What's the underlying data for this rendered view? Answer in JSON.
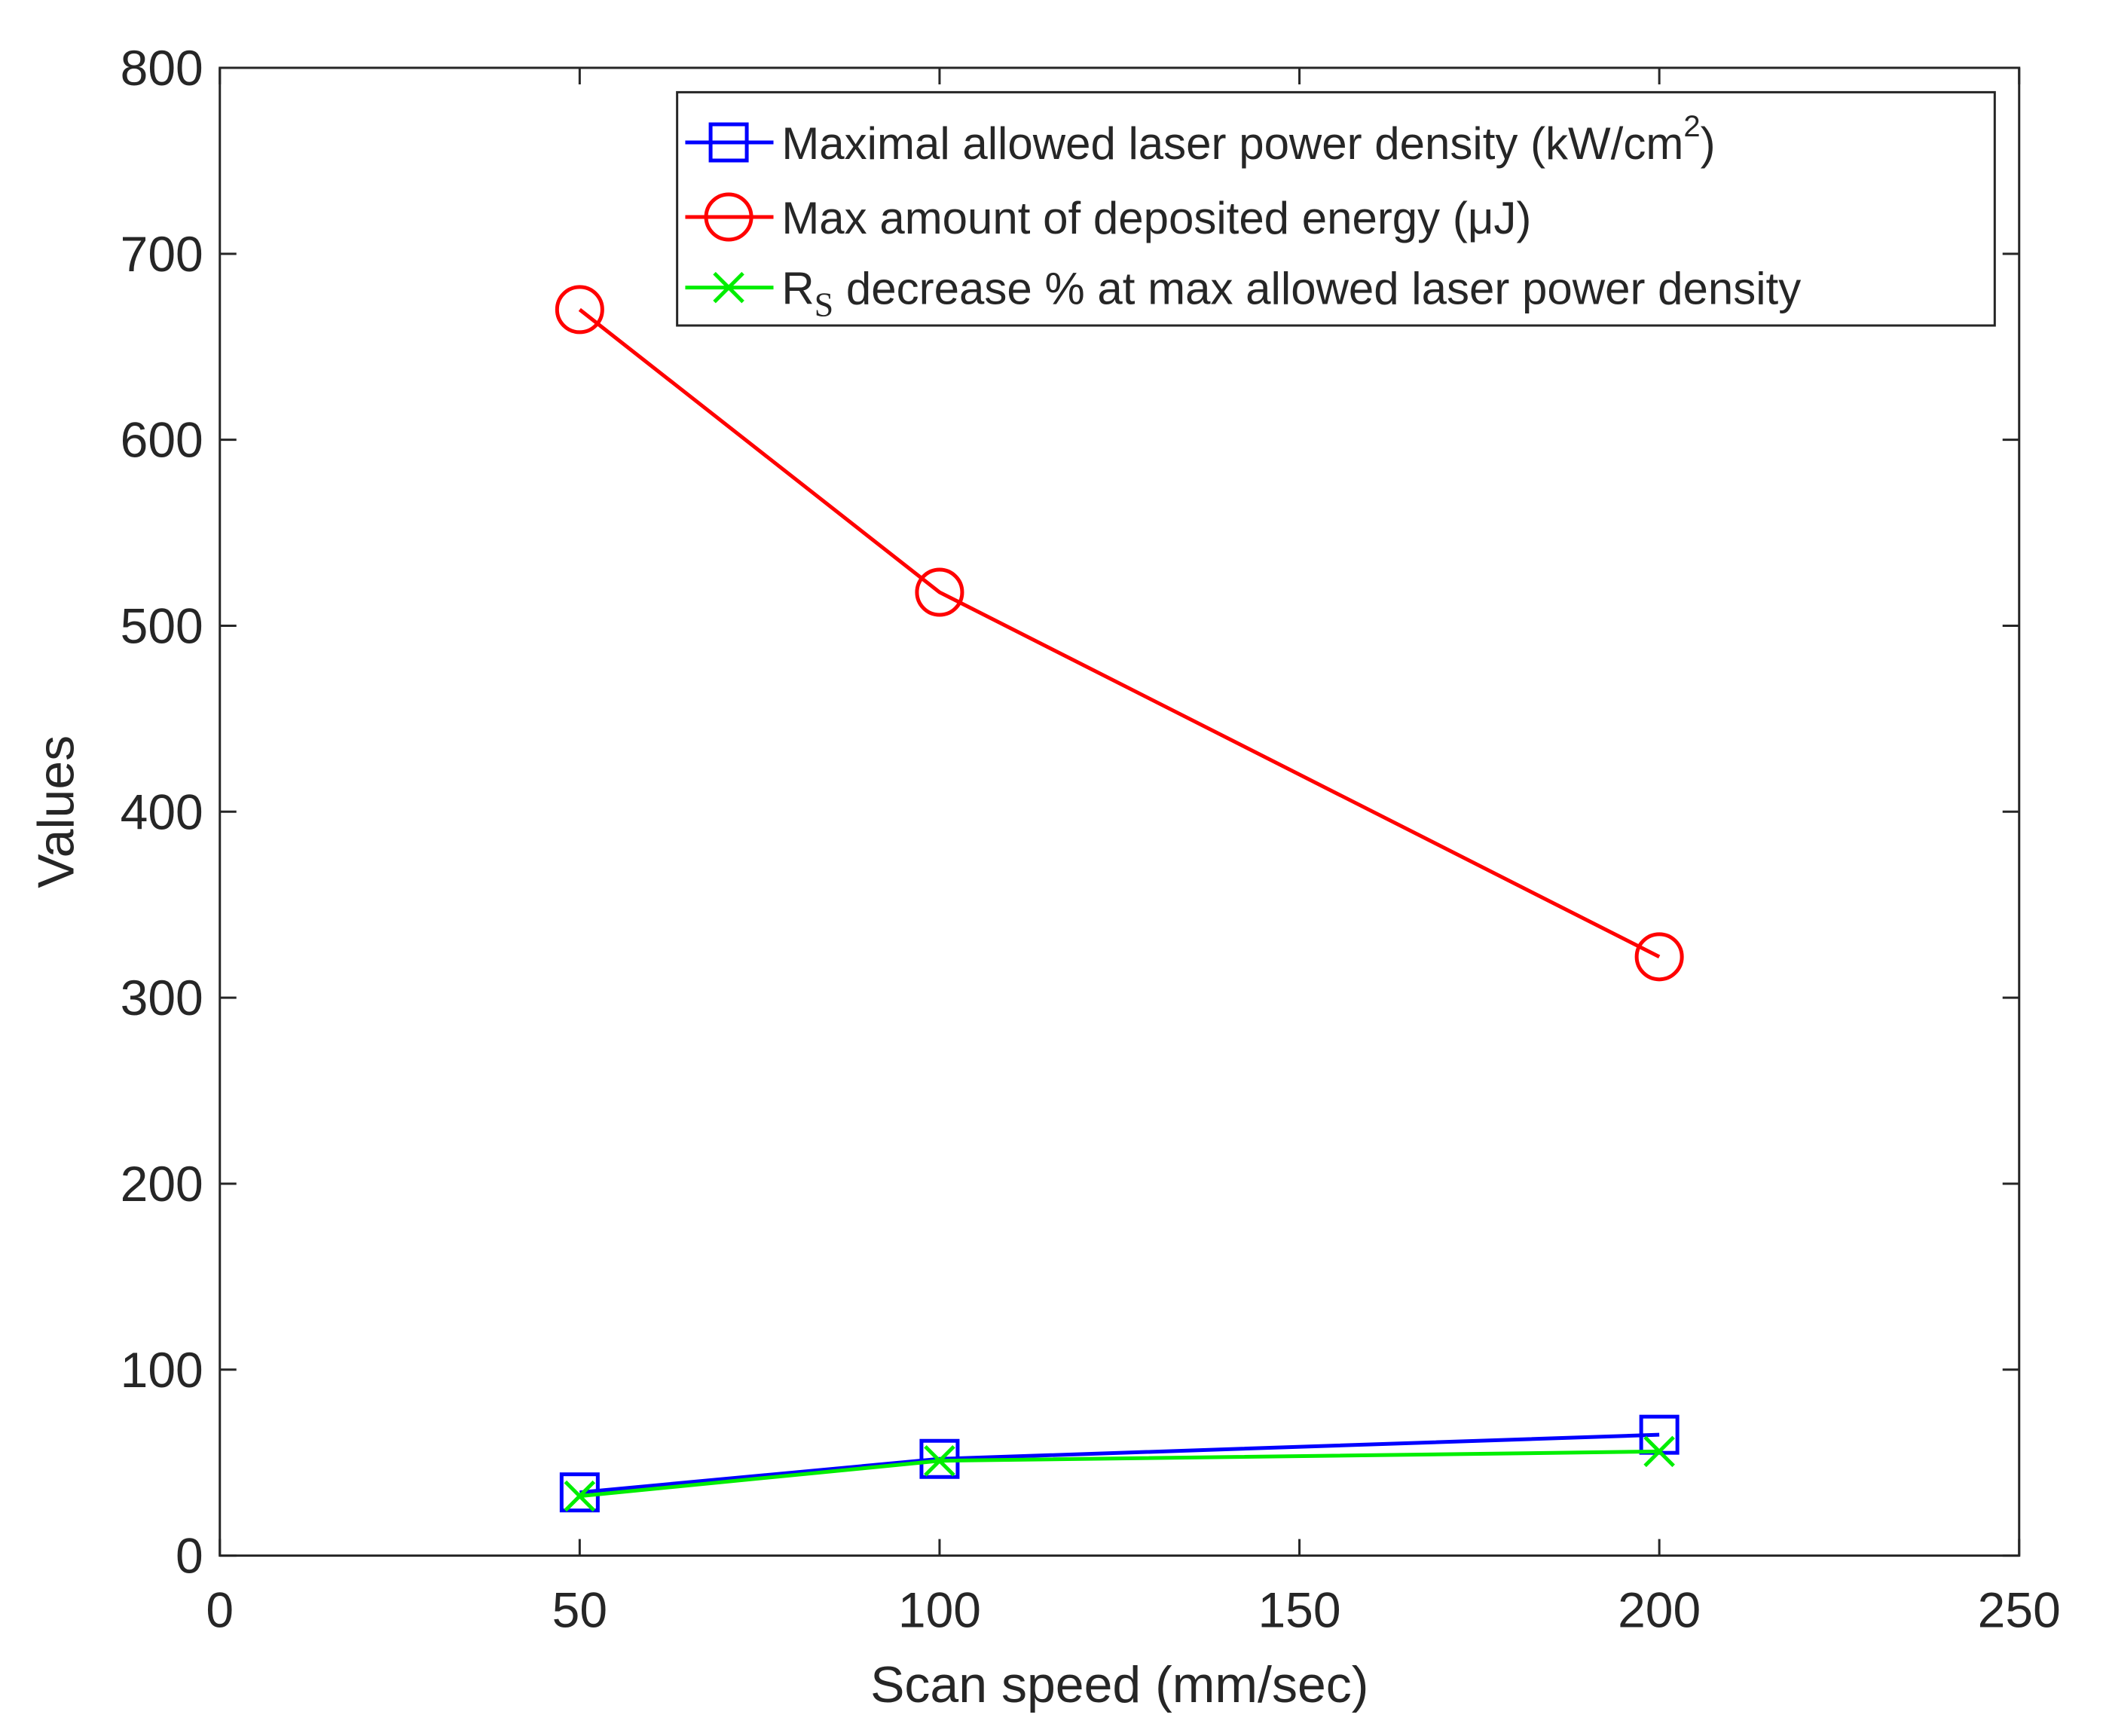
{
  "chart_data": {
    "type": "line",
    "title": "",
    "xlabel": "Scan speed (mm/sec)",
    "ylabel": "Values",
    "xlim": [
      0,
      250
    ],
    "ylim": [
      0,
      800
    ],
    "xticks": [
      "0",
      "50",
      "100",
      "150",
      "200",
      "250"
    ],
    "yticks": [
      "0",
      "100",
      "200",
      "300",
      "400",
      "500",
      "600",
      "700",
      "800"
    ],
    "grid": false,
    "legend_position": "top-right",
    "x": [
      50,
      100,
      200
    ],
    "series": [
      {
        "name": "Maximal allowed laser power density (kW/cm2)",
        "legend_main": "Maximal allowed laser power density (kW/cm",
        "legend_sup": "2",
        "legend_tail": ")",
        "color": "#0000ff",
        "marker": "square",
        "values": [
          34,
          52,
          65
        ]
      },
      {
        "name": "Max amount of deposited energy (μJ)",
        "legend_main": "Max amount of deposited energy (μJ)",
        "color": "#ff0000",
        "marker": "circle",
        "values": [
          670,
          518,
          322
        ]
      },
      {
        "name": "RS decrease % at max allowed laser power density",
        "legend_prefix": "R",
        "legend_sub": "S",
        "legend_main": " decrease % at max allowed laser power density",
        "color": "#00ee00",
        "marker": "x",
        "values": [
          32,
          51,
          56
        ]
      }
    ]
  }
}
